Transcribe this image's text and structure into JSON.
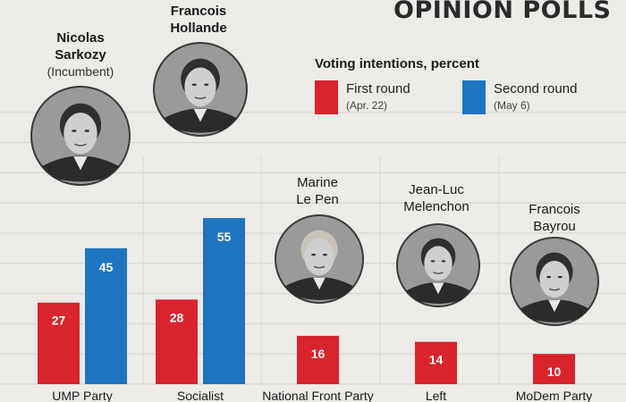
{
  "title": "OPINION POLLS",
  "legend": {
    "heading": "Voting intentions, percent",
    "items": [
      {
        "label": "First round",
        "sub": "(Apr. 22)",
        "color": "#d9232d"
      },
      {
        "label": "Second round",
        "sub": "(May 6)",
        "color": "#1f74c0"
      }
    ]
  },
  "candidates": [
    {
      "name_lines": [
        "Nicolas",
        "Sarkozy"
      ],
      "note": "(Incumbent)",
      "portrait": "sarkozy-portrait"
    },
    {
      "name_lines": [
        "Francois",
        "Hollande"
      ],
      "note": "",
      "portrait": "hollande-portrait"
    },
    {
      "name_lines": [
        "Marine",
        "Le Pen"
      ],
      "note": "",
      "portrait": "le-pen-portrait"
    },
    {
      "name_lines": [
        "Jean-Luc",
        "Melenchon"
      ],
      "note": "",
      "portrait": "melenchon-portrait"
    },
    {
      "name_lines": [
        "Francois",
        "Bayrou"
      ],
      "note": "",
      "portrait": "bayrou-portrait"
    }
  ],
  "chart_data": {
    "type": "bar",
    "categories": [
      "UMP Party",
      "Socialist",
      "National Front Party",
      "Left",
      "MoDem Party"
    ],
    "series": [
      {
        "name": "First round",
        "values": [
          27,
          28,
          16,
          14,
          10
        ],
        "color": "#d9232d"
      },
      {
        "name": "Second round",
        "values": [
          45,
          55,
          null,
          null,
          null
        ],
        "color": "#1f74c0"
      }
    ],
    "ylim": [
      0,
      100
    ],
    "grid": true,
    "legend_position": "top-right"
  }
}
